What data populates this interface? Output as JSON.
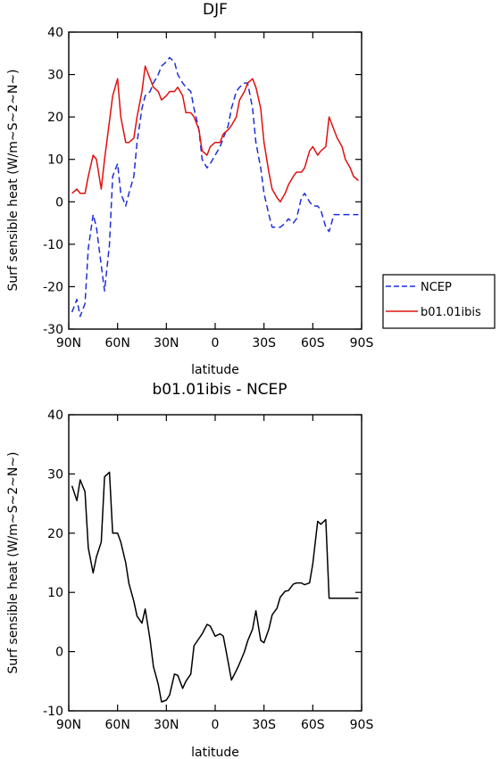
{
  "chart_data": [
    {
      "type": "line",
      "title": "DJF",
      "xlabel": "latitude",
      "ylabel": "Surf sensible heat (W/m~S~2~N~)",
      "xlim": [
        90,
        -90
      ],
      "ylim": [
        -30,
        40
      ],
      "xticks": [
        90,
        60,
        30,
        0,
        -30,
        -60,
        -90
      ],
      "xtick_labels": [
        "90N",
        "60N",
        "30N",
        "0",
        "30S",
        "60S",
        "90S"
      ],
      "yticks": [
        -30,
        -20,
        -10,
        0,
        10,
        20,
        30,
        40
      ],
      "ytick_labels": [
        "-30",
        "-20",
        "-10",
        "0",
        "10",
        "20",
        "30",
        "40"
      ],
      "grid": false,
      "legend_position": "right",
      "series": [
        {
          "name": "NCEP",
          "color": "#1f2fd8",
          "dash": "dashed",
          "x": [
            88,
            85,
            83,
            80,
            78,
            75,
            73,
            70,
            68,
            65,
            63,
            60,
            58,
            55,
            53,
            50,
            48,
            45,
            43,
            40,
            38,
            35,
            33,
            30,
            28,
            25,
            23,
            20,
            18,
            15,
            13,
            10,
            8,
            5,
            3,
            0,
            -3,
            -5,
            -8,
            -10,
            -13,
            -15,
            -18,
            -20,
            -23,
            -25,
            -28,
            -30,
            -33,
            -35,
            -38,
            -40,
            -43,
            -45,
            -48,
            -50,
            -53,
            -55,
            -58,
            -60,
            -63,
            -65,
            -68,
            -70,
            -73,
            -75,
            -78,
            -80,
            -83,
            -85,
            -88
          ],
          "y": [
            -26,
            -23,
            -27,
            -24,
            -11,
            -3,
            -6,
            -15,
            -21,
            -10,
            6,
            9,
            2,
            -1,
            2,
            6,
            14,
            22,
            25,
            26,
            28,
            30,
            32,
            33,
            34,
            33,
            30,
            28,
            27,
            26,
            22,
            17,
            10,
            8,
            9,
            11,
            13,
            15,
            18,
            22,
            26,
            27,
            28,
            28,
            22,
            14,
            8,
            2,
            -3,
            -6,
            -6,
            -6,
            -5,
            -4,
            -5,
            -4,
            1,
            2,
            0,
            -1,
            -1,
            -2,
            -6,
            -7,
            -3,
            -3,
            -3,
            -3,
            -3,
            -3,
            -3
          ]
        },
        {
          "name": "b01.01ibis",
          "color": "#e01010",
          "dash": "solid",
          "x": [
            88,
            85,
            83,
            80,
            78,
            75,
            73,
            70,
            68,
            65,
            63,
            60,
            58,
            55,
            53,
            50,
            48,
            45,
            43,
            40,
            38,
            35,
            33,
            30,
            28,
            25,
            23,
            20,
            18,
            15,
            13,
            10,
            8,
            5,
            3,
            0,
            -3,
            -5,
            -8,
            -10,
            -13,
            -15,
            -18,
            -20,
            -23,
            -25,
            -28,
            -30,
            -33,
            -35,
            -38,
            -40,
            -43,
            -45,
            -48,
            -50,
            -53,
            -55,
            -58,
            -60,
            -63,
            -65,
            -68,
            -70,
            -73,
            -75,
            -78,
            -80,
            -83,
            -85,
            -88
          ],
          "y": [
            2,
            3,
            2,
            2,
            6,
            11,
            10,
            3,
            10,
            19,
            25,
            29,
            20,
            14,
            14,
            15,
            20,
            26,
            32,
            29,
            27,
            26,
            24,
            25,
            26,
            26,
            27,
            25,
            21,
            21,
            20,
            17,
            12,
            11,
            13,
            14,
            14,
            16,
            17,
            18,
            20,
            24,
            26,
            28,
            29,
            27,
            22,
            14,
            7,
            3,
            1,
            0,
            2,
            4,
            6,
            7,
            7,
            8,
            12,
            13,
            11,
            12,
            13,
            20,
            17,
            15,
            13,
            10,
            8,
            6,
            5
          ]
        }
      ]
    },
    {
      "type": "line",
      "title": "b01.01ibis - NCEP",
      "xlabel": "latitude",
      "ylabel": "Surf sensible heat (W/m~S~2~N~)",
      "xlim": [
        90,
        -90
      ],
      "ylim": [
        -10,
        40
      ],
      "xticks": [
        90,
        60,
        30,
        0,
        -30,
        -60,
        -90
      ],
      "xtick_labels": [
        "90N",
        "60N",
        "30N",
        "0",
        "30S",
        "60S",
        "90S"
      ],
      "yticks": [
        -10,
        0,
        10,
        20,
        30,
        40
      ],
      "ytick_labels": [
        "-10",
        "0",
        "10",
        "20",
        "30",
        "40"
      ],
      "grid": false,
      "series": [
        {
          "color": "#000000",
          "dash": "solid",
          "x": [
            88,
            85,
            83,
            80,
            78,
            75,
            73,
            70,
            68,
            65,
            63,
            60,
            58,
            55,
            53,
            50,
            48,
            45,
            43,
            40,
            38,
            35,
            33,
            30,
            28,
            25,
            23,
            20,
            18,
            15,
            13,
            10,
            8,
            5,
            3,
            0,
            -3,
            -5,
            -8,
            -10,
            -13,
            -15,
            -18,
            -20,
            -23,
            -25,
            -28,
            -30,
            -33,
            -35,
            -38,
            -40,
            -43,
            -45,
            -48,
            -50,
            -53,
            -55,
            -58,
            -60,
            -63,
            -65,
            -68,
            -70,
            -73,
            -75,
            -78,
            -80,
            -83,
            -85,
            -88
          ],
          "y": [
            28,
            25.5,
            29,
            27,
            17.5,
            13.3,
            16,
            18.5,
            29.5,
            30.3,
            20,
            20,
            18.5,
            15,
            11.5,
            8.5,
            6,
            4.8,
            7.2,
            2,
            -2.5,
            -5.5,
            -8.5,
            -8.2,
            -7.3,
            -3.8,
            -4.0,
            -6.2,
            -5.0,
            -3.8,
            1.0,
            2.2,
            3.0,
            4.6,
            4.3,
            2.6,
            3.0,
            2.6,
            -1.8,
            -4.8,
            -3.2,
            -2.0,
            0.0,
            1.8,
            3.8,
            6.9,
            1.9,
            1.5,
            3.8,
            6.2,
            7.3,
            9.2,
            10.2,
            10.3,
            11.4,
            11.6,
            11.6,
            11.3,
            11.6,
            14.8,
            22.0,
            21.5,
            22.3,
            9.0,
            9.0,
            9.0,
            9.0,
            9.0,
            9.0,
            9.0,
            9.0
          ]
        }
      ]
    }
  ]
}
